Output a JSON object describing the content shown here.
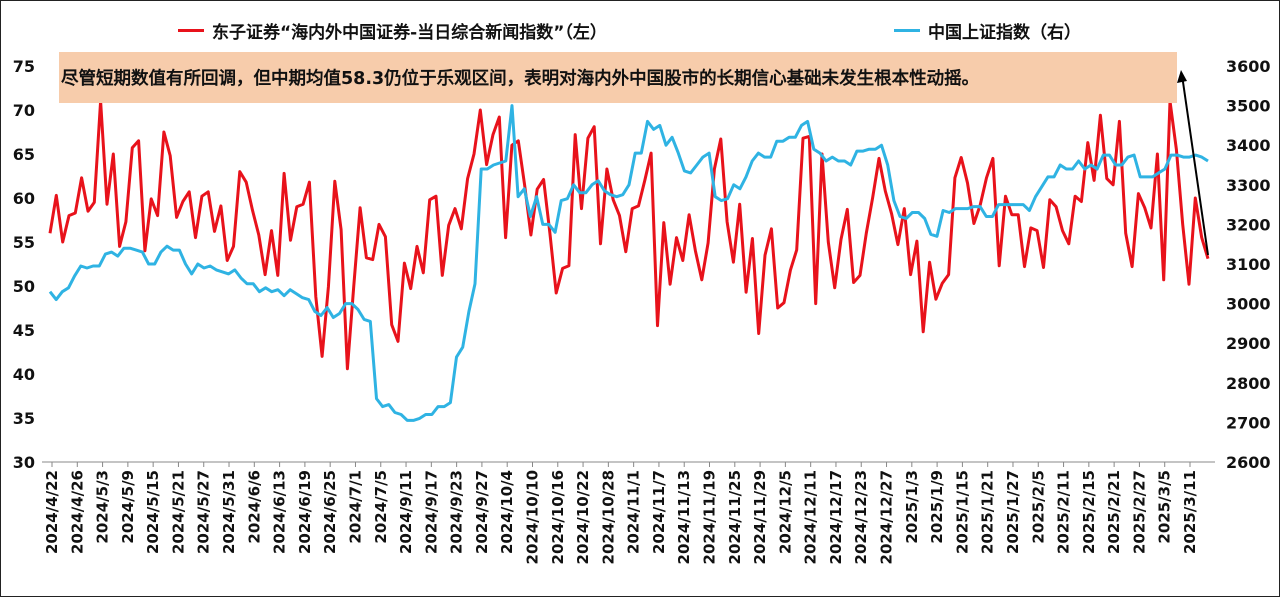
{
  "chart_data": {
    "type": "line",
    "legend": [
      {
        "label": "东子证券“海内外中国证券-当日综合新闻指数”（左）",
        "color": "#e8121b"
      },
      {
        "label": "中国上证指数（右）",
        "color": "#2fb3e3"
      }
    ],
    "annotation": "尽管短期数值有所回调，但中期均值58.3仍位于乐观区间，表明对海内外中国股市的长期信心基础未发生根本性动摇。",
    "left_axis": {
      "min": 30,
      "max": 75,
      "step": 5
    },
    "right_axis": {
      "min": 2600,
      "max": 3600,
      "step": 100
    },
    "x_tick_labels": [
      "2024/4/22",
      "2024/4/26",
      "2024/5/3",
      "2024/5/9",
      "2024/5/15",
      "2024/5/21",
      "2024/5/27",
      "2024/5/31",
      "2024/6/6",
      "2024/6/13",
      "2024/6/19",
      "2024/6/25",
      "2024/7/1",
      "2024/7/5",
      "2024/9/11",
      "2024/9/17",
      "2024/9/23",
      "2024/9/27",
      "2024/10/4",
      "2024/10/10",
      "2024/10/16",
      "2024/10/22",
      "2024/10/28",
      "2024/11/1",
      "2024/11/7",
      "2024/11/13",
      "2024/11/19",
      "2024/11/25",
      "2024/11/29",
      "2024/12/5",
      "2024/12/11",
      "2024/12/17",
      "2024/12/23",
      "2024/12/27",
      "2025/1/3",
      "2025/1/9",
      "2025/1/15",
      "2025/1/21",
      "2025/1/27",
      "2025/2/5",
      "2025/2/11",
      "2025/2/15",
      "2025/2/21",
      "2025/2/27",
      "2025/3/5",
      "2025/3/11"
    ],
    "series": [
      {
        "name": "东子证券“海内外中国证券-当日综合新闻指数”（左）",
        "axis": "left",
        "color": "#e8121b",
        "values": [
          56,
          60.3,
          55,
          58,
          58.3,
          62.3,
          58.5,
          59.5,
          71,
          59.3,
          65,
          54.5,
          57.3,
          65.7,
          66.5,
          54,
          59.9,
          58,
          67.5,
          64.8,
          57.8,
          59.6,
          60.7,
          55.5,
          60.2,
          60.7,
          56.2,
          59.1,
          52.9,
          54.5,
          63,
          61.8,
          58.6,
          55.8,
          51.3,
          56.3,
          51.2,
          62.8,
          55.2,
          59,
          59.3,
          61.8,
          48.8,
          42,
          49.9,
          61.9,
          56.4,
          40.6,
          49.9,
          58.9,
          53.2,
          53,
          57,
          55.6,
          45.6,
          43.7,
          52.6,
          49.7,
          54.5,
          51.5,
          59.8,
          60.2,
          51.2,
          56.9,
          58.8,
          56.5,
          62.2,
          65,
          70,
          63.8,
          67.2,
          69.2,
          55.5,
          66,
          66.5,
          61.5,
          55.8,
          61,
          62.1,
          56,
          49.2,
          52,
          52.3,
          67.2,
          58.8,
          66.8,
          68.1,
          54.8,
          63.3,
          59.8,
          58,
          53.9,
          58.8,
          59.1,
          62,
          65.1,
          45.5,
          57.2,
          50.2,
          55.5,
          52.9,
          58.1,
          54,
          50.7,
          54.9,
          63.3,
          66.7,
          57.3,
          52.7,
          59.3,
          49.3,
          55.4,
          44.6,
          53.5,
          56.5,
          47.5,
          48.1,
          51.8,
          54.1,
          66.8,
          67,
          48,
          65,
          55,
          49.8,
          55.3,
          58.7,
          50.4,
          51.2,
          56,
          60,
          64.5,
          60.8,
          58.2,
          54.7,
          58.8,
          51.3,
          55.1,
          44.8,
          52.7,
          48.5,
          50.3,
          51.3,
          62.3,
          64.6,
          61.7,
          57.1,
          59.2,
          62.3,
          64.5,
          52.3,
          60.2,
          58.1,
          58.1,
          52.2,
          56.6,
          56.3,
          52.1,
          59.8,
          59,
          56.3,
          54.8,
          60.2,
          59.6,
          66.3,
          62,
          69.4,
          62.2,
          61.5,
          68.7,
          56,
          52.2,
          60.5,
          58.9,
          56.6,
          65,
          50.7,
          71,
          65.5,
          57,
          50.2,
          60,
          55.5,
          53.1
        ]
      },
      {
        "name": "中国上证指数（右）",
        "axis": "right",
        "color": "#2fb3e3",
        "values": [
          3030,
          3010,
          3030,
          3040,
          3070,
          3095,
          3090,
          3095,
          3095,
          3125,
          3130,
          3120,
          3140,
          3140,
          3135,
          3130,
          3100,
          3100,
          3130,
          3145,
          3135,
          3135,
          3100,
          3075,
          3100,
          3090,
          3095,
          3085,
          3080,
          3075,
          3085,
          3065,
          3050,
          3050,
          3030,
          3040,
          3030,
          3035,
          3020,
          3035,
          3025,
          3015,
          3010,
          2980,
          2970,
          2990,
          2965,
          2975,
          3000,
          3000,
          2985,
          2960,
          2955,
          2760,
          2740,
          2745,
          2725,
          2720,
          2705,
          2705,
          2710,
          2720,
          2720,
          2740,
          2740,
          2750,
          2865,
          2890,
          2980,
          3050,
          3340,
          3340,
          3350,
          3355,
          3360,
          3500,
          3270,
          3290,
          3220,
          3270,
          3200,
          3200,
          3180,
          3260,
          3265,
          3300,
          3280,
          3280,
          3300,
          3310,
          3285,
          3275,
          3270,
          3275,
          3300,
          3380,
          3380,
          3460,
          3440,
          3450,
          3400,
          3420,
          3380,
          3335,
          3330,
          3350,
          3370,
          3380,
          3270,
          3260,
          3265,
          3300,
          3290,
          3320,
          3360,
          3380,
          3370,
          3370,
          3410,
          3410,
          3420,
          3420,
          3450,
          3460,
          3390,
          3380,
          3360,
          3370,
          3360,
          3360,
          3350,
          3385,
          3385,
          3390,
          3390,
          3400,
          3350,
          3260,
          3220,
          3215,
          3230,
          3230,
          3215,
          3175,
          3170,
          3235,
          3230,
          3240,
          3240,
          3240,
          3245,
          3245,
          3220,
          3220,
          3250,
          3250,
          3250,
          3250,
          3250,
          3235,
          3270,
          3295,
          3320,
          3320,
          3350,
          3340,
          3340,
          3360,
          3340,
          3350,
          3340,
          3375,
          3375,
          3350,
          3350,
          3370,
          3375,
          3320,
          3320,
          3320,
          3330,
          3340,
          3375,
          3375,
          3370,
          3370,
          3375,
          3370,
          3360
        ]
      }
    ]
  }
}
